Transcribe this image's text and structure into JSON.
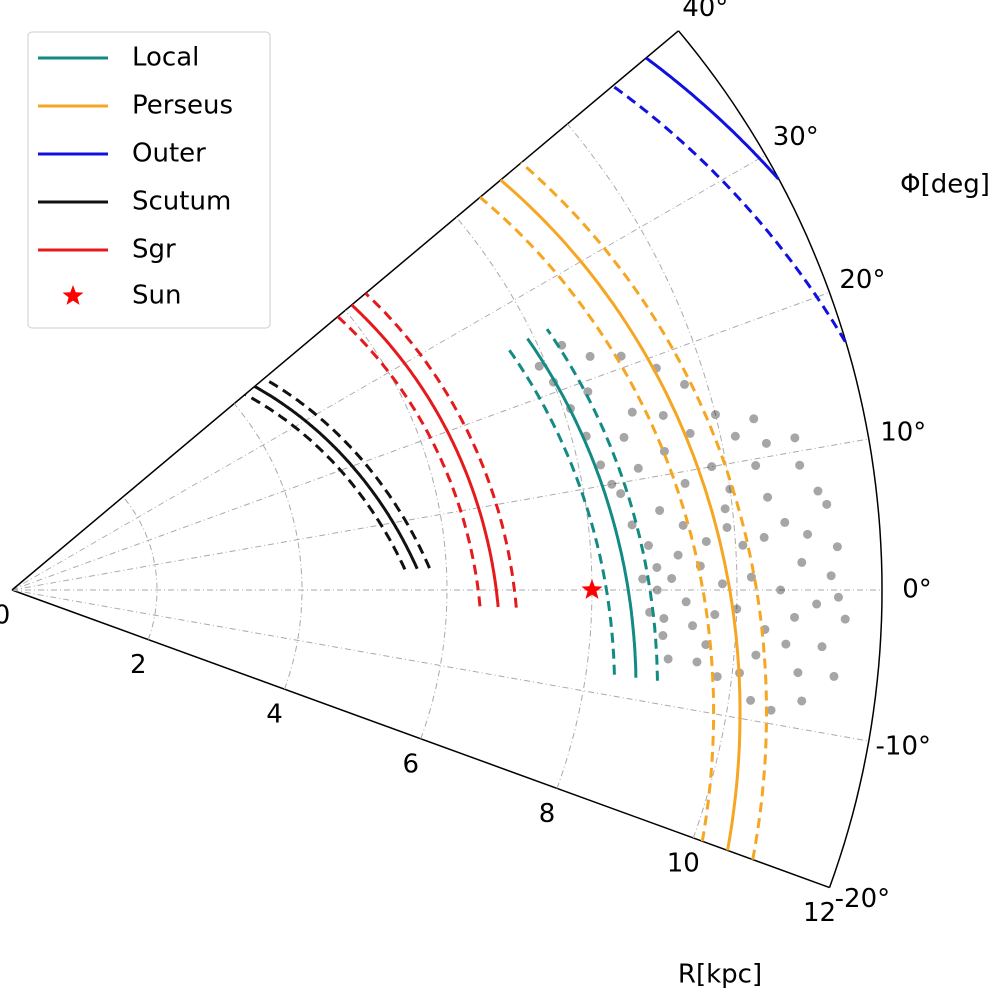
{
  "chart_data": {
    "type": "polar",
    "x_label": "R[kpc]",
    "y_label": "Φ[deg]",
    "xlim": [
      0,
      12
    ],
    "xticks": [
      0,
      2,
      4,
      6,
      8,
      10,
      12
    ],
    "ylim": [
      -20,
      40
    ],
    "yticks": [
      {
        "value": -20,
        "label": "-20°"
      },
      {
        "value": -10,
        "label": "-10°"
      },
      {
        "value": 0,
        "label": "0°"
      },
      {
        "value": 10,
        "label": "10°"
      },
      {
        "value": 20,
        "label": "20°"
      },
      {
        "value": 30,
        "label": "30°"
      },
      {
        "value": 40,
        "label": "40°"
      }
    ],
    "grid": true,
    "series": [
      {
        "name": "Local",
        "color": "#138a84",
        "r0": 8.5,
        "pitch": 9,
        "width": 0.3,
        "phi_range": [
          -8,
          26
        ]
      },
      {
        "name": "Perseus",
        "color": "#f5a623",
        "r0": 9.9,
        "pitch": 9.6,
        "width": 0.37,
        "phi_range": [
          -20,
          40
        ]
      },
      {
        "name": "Outer",
        "color": "#1010e0",
        "r0": 13.5,
        "pitch": 13.5,
        "width": 0.6,
        "phi_range": [
          16,
          40
        ]
      },
      {
        "name": "Scutum",
        "color": "#111111",
        "r0": 5.71,
        "pitch": 21,
        "width": 0.17,
        "phi_range": [
          3,
          40
        ]
      },
      {
        "name": "Sgr",
        "color": "#e41a1c",
        "r0": 6.68,
        "pitch": 7.2,
        "width": 0.25,
        "phi_range": [
          -2,
          40
        ]
      }
    ],
    "sun": {
      "name": "Sun",
      "color": "#ff0000",
      "r": 8.0,
      "phi": 0
    },
    "stars": {
      "color": "#000000",
      "r": [
        8.9,
        9.1,
        9.3,
        9.5,
        9.7,
        9.2,
        9.4,
        9.8,
        10.0,
        9.0,
        9.6,
        10.2,
        10.4,
        10.1,
        9.9,
        10.6,
        10.8,
        10.3,
        9.6,
        9.3,
        10.9,
        11.1,
        11.3,
        11.2,
        10.7,
        10.5,
        10.0,
        10.9,
        11.0,
        10.6,
        11.4,
        11.5,
        11.3,
        11.0,
        10.6,
        10.2,
        9.8,
        9.4,
        9.0,
        8.8,
        8.6,
        8.5,
        8.3,
        8.2,
        8.1,
        8.0,
        7.9,
        8.4,
        8.7,
        8.9,
        9.3,
        9.6,
        10.0,
        10.4,
        11.2,
        9.1,
        9.8,
        10.3,
        11.4,
        8.8,
        8.9,
        9.0,
        9.5,
        10.1,
        10.7,
        10.4,
        11.0,
        11.4,
        8.7,
        8.4,
        8.8,
        9.2,
        9.7,
        9.4,
        9.0,
        8.6,
        8.3,
        10.5,
        11.0,
        9.9
      ],
      "phi": [
        0,
        1,
        -1,
        2,
        -2,
        3,
        -3,
        0.5,
        -1.5,
        -2.5,
        4,
        1,
        -3,
        3.5,
        5,
        0,
        -2,
        -5,
        -4.5,
        5.5,
        2,
        -1,
        1,
        -4,
        5,
        7,
        8,
        -6,
        -8,
        -9,
        3,
        -2,
        6,
        9,
        11,
        12,
        10,
        9,
        7,
        4,
        6,
        9,
        12,
        15,
        18,
        21,
        23,
        19,
        14,
        16,
        15,
        13,
        14,
        9.5,
        7,
        -6,
        -7,
        -8.5,
        -6,
        -2,
        2,
        -4,
        -6,
        -6.5,
        -4,
        4,
        4,
        -0.5,
        1,
        10,
        11,
        12,
        17,
        19,
        21,
        22,
        24,
        13,
        11,
        6.5
      ]
    }
  }
}
